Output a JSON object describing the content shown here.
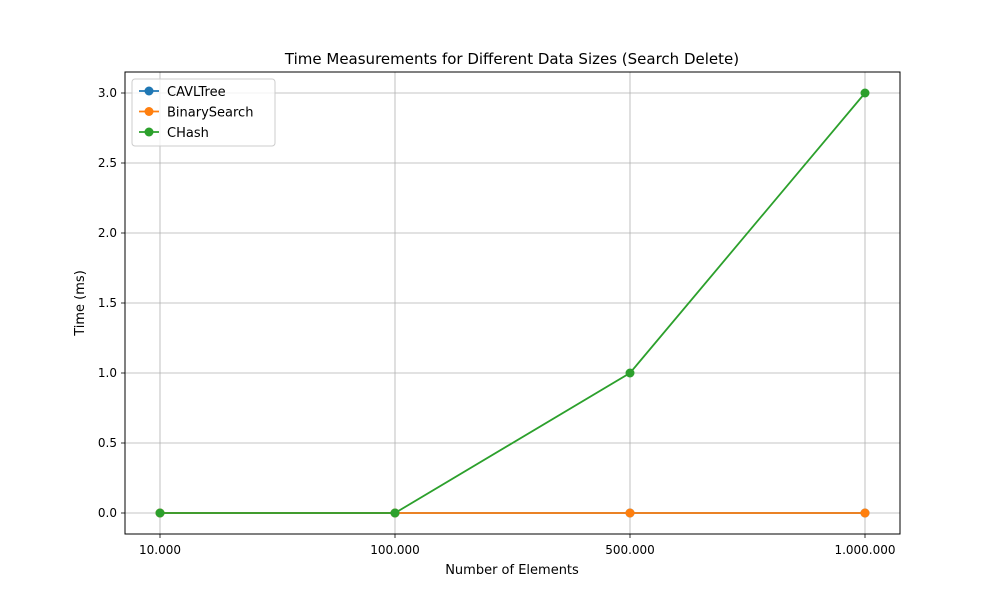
{
  "chart_data": {
    "type": "line",
    "title": "Time Measurements for Different Data Sizes (Search Delete)",
    "xlabel": "Number of Elements",
    "ylabel": "Time (ms)",
    "categories": [
      "10.000",
      "100.000",
      "500.000",
      "1.000.000"
    ],
    "ylim": [
      -0.15,
      3.15
    ],
    "yticks": [
      "0.0",
      "0.5",
      "1.0",
      "1.5",
      "2.0",
      "2.5",
      "3.0"
    ],
    "ytick_values": [
      0,
      0.5,
      1.0,
      1.5,
      2.0,
      2.5,
      3.0
    ],
    "grid": true,
    "legend_position": "top-left",
    "series": [
      {
        "name": "CAVLTree",
        "color": "#1f77b4",
        "values": [
          0,
          0,
          0,
          0
        ]
      },
      {
        "name": "BinarySearch",
        "color": "#ff7f0e",
        "values": [
          0,
          0,
          0,
          0
        ]
      },
      {
        "name": "CHash",
        "color": "#2ca02c",
        "values": [
          0,
          0,
          1.0,
          3.0
        ]
      }
    ]
  }
}
